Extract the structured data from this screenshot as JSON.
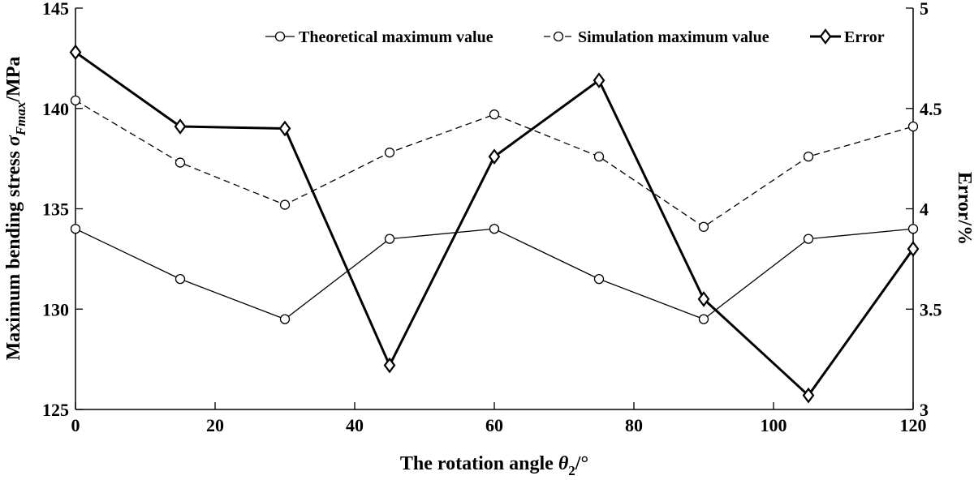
{
  "chart_data": {
    "type": "line",
    "x": [
      0,
      15,
      30,
      45,
      60,
      75,
      90,
      105,
      120
    ],
    "xlim": [
      0,
      120
    ],
    "ylim": [
      125,
      145
    ],
    "y2lim": [
      3,
      5
    ],
    "x_ticks": [
      "0",
      "20",
      "40",
      "60",
      "80",
      "100",
      "120"
    ],
    "y_ticks": [
      "125",
      "130",
      "135",
      "140",
      "145"
    ],
    "y2_ticks": [
      "3",
      "3.5",
      "4",
      "4.5",
      "5"
    ],
    "xlabel": {
      "main": "The rotation angle ",
      "symbol": "θ",
      "sub": "2",
      "unit": "/°"
    },
    "ylabel": {
      "main": "Maximum bending stress ",
      "symbol": "σ",
      "sub": "Fmax",
      "unit": "/MPa"
    },
    "y2label": "Error/%",
    "grid": false,
    "legend_position": "top-right",
    "series": [
      {
        "name": "Theoretical maximum value",
        "axis": "left",
        "style": "solid-thin",
        "marker": "circle",
        "values": [
          134.0,
          131.5,
          129.5,
          133.5,
          134.0,
          131.5,
          129.5,
          133.5,
          134.0
        ]
      },
      {
        "name": "Simulation maximum value",
        "axis": "left",
        "style": "dashed",
        "marker": "circle",
        "values": [
          140.4,
          137.3,
          135.2,
          137.8,
          139.7,
          137.6,
          134.1,
          137.6,
          139.1
        ]
      },
      {
        "name": "Error",
        "axis": "right",
        "style": "solid-thick",
        "marker": "diamond",
        "values": [
          4.78,
          4.41,
          4.4,
          3.22,
          4.26,
          4.64,
          3.55,
          3.07,
          3.8
        ]
      }
    ]
  }
}
